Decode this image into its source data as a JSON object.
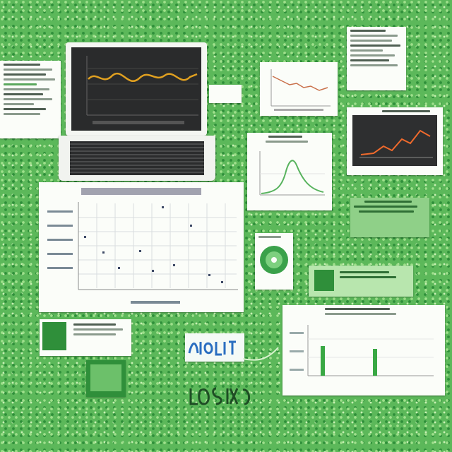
{
  "figures": {
    "laptop": {
      "line_color": "#e0a020",
      "screen_color": "#2a2b2c"
    },
    "scatter": {
      "title_color": "#5a5a70",
      "points_color": "#3e4a66"
    },
    "green_curve": {
      "line_color": "#58b35e"
    },
    "dark_chart": {
      "line_color": "#f06a2c",
      "bg_color": "#2e2f30"
    },
    "bar_chart": {
      "bar_color": "#39a844"
    }
  },
  "colors": {
    "background": "#5cb85a",
    "paper": "#fbfdf9",
    "accent_green": "#2f8f3a"
  },
  "icons": [
    "laptop-icon",
    "cd-disc-icon",
    "folder-icon"
  ]
}
